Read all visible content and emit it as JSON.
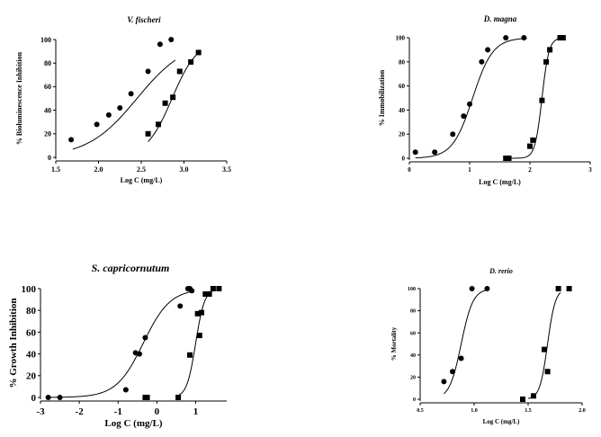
{
  "chart_data": [
    {
      "type": "scatter",
      "title": "V. fischeri",
      "xlabel": "Log C (mg/L)",
      "ylabel": "% Bioluminescence Inhibition",
      "xlim": [
        1.5,
        3.5
      ],
      "ylim": [
        0,
        100
      ],
      "xticks": [
        "1.5",
        "2.0",
        "2.5",
        "3.0",
        "3.5"
      ],
      "yticks": [
        "0",
        "20",
        "40",
        "60",
        "80",
        "100"
      ],
      "grid": false,
      "series": [
        {
          "marker": "circle",
          "x": [
            1.68,
            1.98,
            2.12,
            2.25,
            2.38,
            2.58,
            2.72,
            2.85
          ],
          "y": [
            15,
            28,
            36,
            42,
            54,
            73,
            96,
            100
          ],
          "fit": {
            "top": 100,
            "bottom": 0,
            "logEC50": 2.45,
            "slope": 1.5,
            "xrange": [
              1.7,
              2.9
            ]
          }
        },
        {
          "marker": "square",
          "x": [
            2.58,
            2.7,
            2.78,
            2.87,
            2.95,
            3.08,
            3.17
          ],
          "y": [
            20,
            28,
            46,
            51,
            73,
            81,
            89
          ],
          "fit": {
            "top": 100,
            "bottom": 0,
            "logEC50": 2.86,
            "slope": 2.9,
            "xrange": [
              2.58,
              3.2
            ]
          }
        }
      ]
    },
    {
      "type": "scatter",
      "title": "D. magna",
      "xlabel": "Log C (mg/L)",
      "ylabel": "% Immobilization",
      "xlim": [
        0,
        3
      ],
      "ylim": [
        0,
        100
      ],
      "xticks": [
        "0",
        "1",
        "2",
        "3"
      ],
      "yticks": [
        "0",
        "20",
        "40",
        "60",
        "80",
        "100"
      ],
      "grid": false,
      "series": [
        {
          "marker": "circle",
          "x": [
            0.1,
            0.42,
            0.72,
            0.9,
            1.0,
            1.2,
            1.3,
            1.6,
            1.9
          ],
          "y": [
            5,
            5,
            20,
            35,
            45,
            80,
            90,
            100,
            100
          ],
          "fit": {
            "top": 100,
            "bottom": 0,
            "logEC50": 1.05,
            "slope": 2.6,
            "xrange": [
              0.1,
              1.95
            ]
          }
        },
        {
          "marker": "square",
          "x": [
            1.6,
            1.65,
            2.0,
            2.05,
            2.2,
            2.27,
            2.33,
            2.5,
            2.55
          ],
          "y": [
            0,
            0,
            10,
            15,
            48,
            80,
            90,
            100,
            100
          ],
          "fit": {
            "top": 100,
            "bottom": 0,
            "logEC50": 2.2,
            "slope": 7.5,
            "xrange": [
              1.6,
              2.55
            ]
          }
        }
      ]
    },
    {
      "type": "scatter",
      "title": "S. capricornutum",
      "xlabel": "Log C (mg/L)",
      "ylabel": "% Growth Inhibition",
      "xlim": [
        -3,
        1.8
      ],
      "ylim": [
        0,
        100
      ],
      "xticks": [
        "-3",
        "-2",
        "-1",
        "0",
        "1"
      ],
      "yticks": [
        "0",
        "20",
        "40",
        "60",
        "80",
        "100"
      ],
      "grid": false,
      "series": [
        {
          "marker": "circle",
          "x": [
            -2.8,
            -2.5,
            -0.8,
            -0.55,
            -0.45,
            -0.3,
            0.6,
            0.8,
            0.85,
            0.9
          ],
          "y": [
            0,
            0,
            7,
            41,
            40,
            55,
            84,
            100,
            100,
            98
          ],
          "fit": {
            "top": 100,
            "bottom": 0,
            "logEC50": -0.35,
            "slope": 1.25,
            "xrange": [
              -2.75,
              0.9
            ]
          }
        },
        {
          "marker": "square",
          "x": [
            -0.3,
            -0.25,
            0.55,
            0.85,
            1.05,
            1.1,
            1.15,
            1.25,
            1.35,
            1.45,
            1.6
          ],
          "y": [
            0,
            0,
            0,
            39,
            77,
            57,
            78,
            95,
            95,
            100,
            100
          ],
          "fit": {
            "top": 100,
            "bottom": 0,
            "logEC50": 1.0,
            "slope": 3.8,
            "xrange": [
              0.5,
              1.5
            ]
          }
        }
      ]
    },
    {
      "type": "scatter",
      "title": "D. rerio",
      "xlabel": "Log C (mg/L)",
      "ylabel": "% Mortality",
      "xlim": [
        0.5,
        2.0
      ],
      "ylim": [
        0,
        100
      ],
      "xticks": [
        "0.5",
        "1.0",
        "1.5",
        "2.0"
      ],
      "yticks": [
        "0",
        "20",
        "40",
        "60",
        "80",
        "100"
      ],
      "grid": false,
      "series": [
        {
          "marker": "circle",
          "x": [
            0.72,
            0.8,
            0.88,
            0.98,
            1.12
          ],
          "y": [
            16,
            25,
            37,
            100,
            100
          ],
          "fit": {
            "top": 100,
            "bottom": 0,
            "logEC50": 0.88,
            "slope": 8.0,
            "xrange": [
              0.72,
              1.12
            ]
          }
        },
        {
          "marker": "square",
          "x": [
            1.45,
            1.55,
            1.65,
            1.68,
            1.78,
            1.88
          ],
          "y": [
            0,
            3,
            45,
            25,
            100,
            100
          ],
          "fit": {
            "top": 100,
            "bottom": 0,
            "logEC50": 1.68,
            "slope": 12.0,
            "xrange": [
              1.5,
              1.8
            ]
          }
        }
      ]
    }
  ]
}
